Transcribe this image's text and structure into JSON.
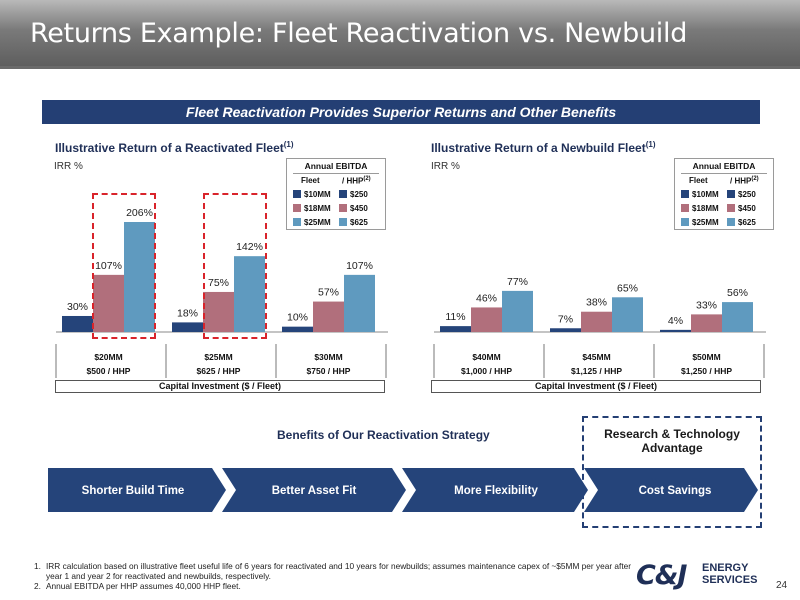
{
  "slide": {
    "title": "Returns Example: Fleet Reactivation vs. Newbuild",
    "banner": "Fleet Reactivation Provides Superior Returns and Other Benefits",
    "page_number": "24"
  },
  "legend": {
    "title": "Annual EBITDA",
    "col_fleet": "Fleet",
    "col_hhp": "/ HHP",
    "col_hhp_sup": "(2)",
    "fleet_items": [
      "$10MM",
      "$18MM",
      "$25MM"
    ],
    "hhp_items": [
      "$250",
      "$450",
      "$625"
    ]
  },
  "colors": {
    "series_dark": "#25447a",
    "series_mid": "#b16f7c",
    "series_light": "#5f9abf",
    "highlight_dash": "#d9242b",
    "navy": "#243f74"
  },
  "chart_data": [
    {
      "type": "bar",
      "title": "Illustrative Return of a Reactivated Fleet",
      "title_sup": "(1)",
      "ylabel": "IRR %",
      "xlabel": "Capital Investment ($ / Fleet)",
      "categories": [
        {
          "top": "$20MM",
          "bottom": "$500 / HHP"
        },
        {
          "top": "$25MM",
          "bottom": "$625 / HHP"
        },
        {
          "top": "$30MM",
          "bottom": "$750 / HHP"
        }
      ],
      "series": [
        {
          "values": [
            30,
            18,
            10
          ],
          "labels": [
            "30%",
            "18%",
            "10%"
          ]
        },
        {
          "values": [
            107,
            75,
            57
          ],
          "labels": [
            "107%",
            "75%",
            "57%"
          ]
        },
        {
          "values": [
            206,
            142,
            107
          ],
          "labels": [
            "206%",
            "142%",
            "107%"
          ]
        }
      ],
      "highlighted_categories": [
        0,
        1
      ],
      "legend_placement": "top-right"
    },
    {
      "type": "bar",
      "title": "Illustrative Return of a Newbuild Fleet",
      "title_sup": "(1)",
      "ylabel": "IRR %",
      "xlabel": "Capital Investment ($ / Fleet)",
      "categories": [
        {
          "top": "$40MM",
          "bottom": "$1,000 / HHP"
        },
        {
          "top": "$45MM",
          "bottom": "$1,125 / HHP"
        },
        {
          "top": "$50MM",
          "bottom": "$1,250 / HHP"
        }
      ],
      "series": [
        {
          "values": [
            11,
            7,
            4
          ],
          "labels": [
            "11%",
            "7%",
            "4%"
          ]
        },
        {
          "values": [
            46,
            38,
            33
          ],
          "labels": [
            "46%",
            "38%",
            "33%"
          ]
        },
        {
          "values": [
            77,
            65,
            56
          ],
          "labels": [
            "77%",
            "65%",
            "56%"
          ]
        }
      ],
      "legend_placement": "top-right"
    }
  ],
  "benefits": {
    "title": "Benefits of Our Reactivation Strategy",
    "research_label": "Research & Technology Advantage",
    "steps": [
      "Shorter Build Time",
      "Better Asset Fit",
      "More Flexibility",
      "Cost Savings"
    ]
  },
  "footnotes": [
    {
      "num": "1.",
      "text": "IRR calculation based on illustrative fleet useful life of 6 years for reactivated and 10 years for newbuilds; assumes maintenance capex of ~$5MM per year after year 1 and year 2 for reactivated and newbuilds, respectively."
    },
    {
      "num": "2.",
      "text": "Annual EBITDA per HHP assumes 40,000 HHP fleet."
    }
  ],
  "logo": {
    "mark": "C&J",
    "line1": "ENERGY",
    "line2": "SERVICES"
  }
}
